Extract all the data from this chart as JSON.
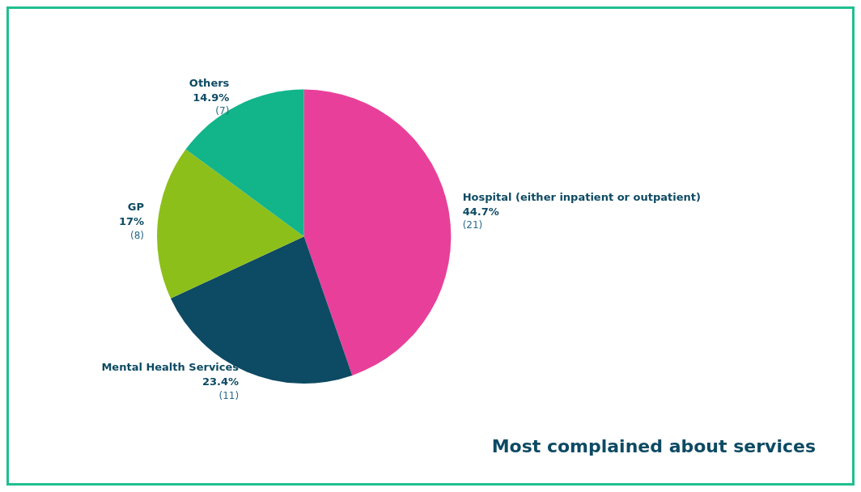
{
  "chart_data": {
    "type": "pie",
    "title": "Most complained about services",
    "categories": [
      "Hospital (either inpatient or outpatient)",
      "Mental Health Services",
      "GP",
      "Others"
    ],
    "values": [
      21,
      11,
      8,
      7
    ],
    "colors": [
      "#e8409a",
      "#0d4a63",
      "#8dbf1a",
      "#12b48a"
    ],
    "value_labels": [
      "44.7%\n(21)",
      "23.4%\n(11)",
      "17%\n(8)",
      "14.9%\n(7)"
    ],
    "legend": false
  }
}
